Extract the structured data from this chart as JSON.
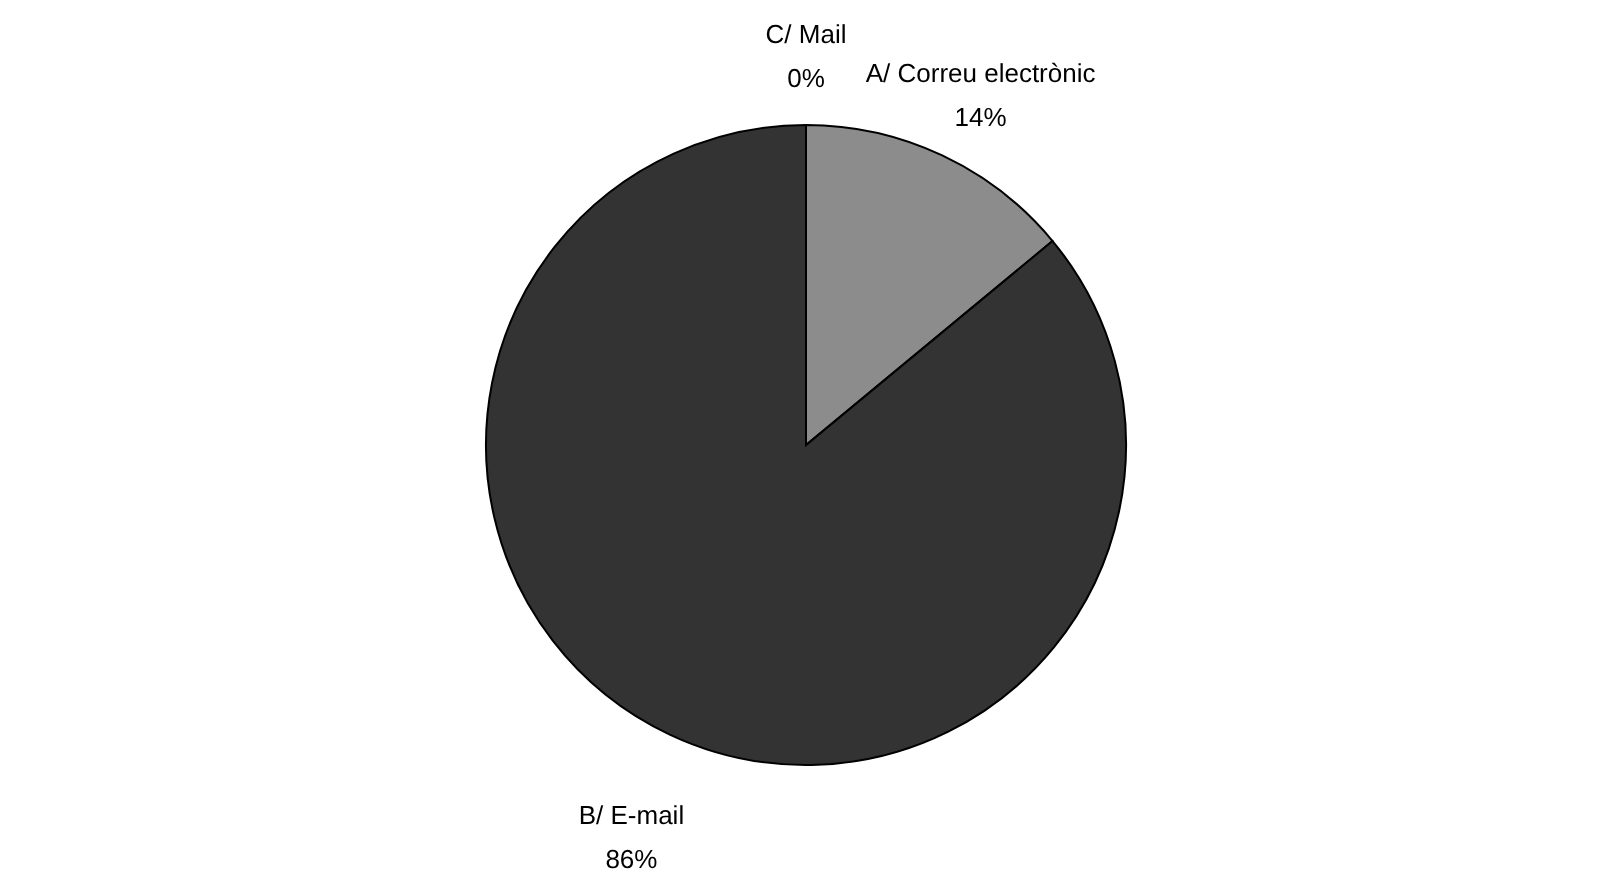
{
  "chart_data": {
    "type": "pie",
    "categories": [
      "A/ Correu electrònic",
      "B/ E-mail",
      "C/ Mail"
    ],
    "values": [
      14,
      86,
      0
    ],
    "colors": [
      "#8c8c8c",
      "#333333",
      "#ffffff"
    ],
    "value_labels": [
      "14%",
      "86%",
      "0%"
    ]
  }
}
